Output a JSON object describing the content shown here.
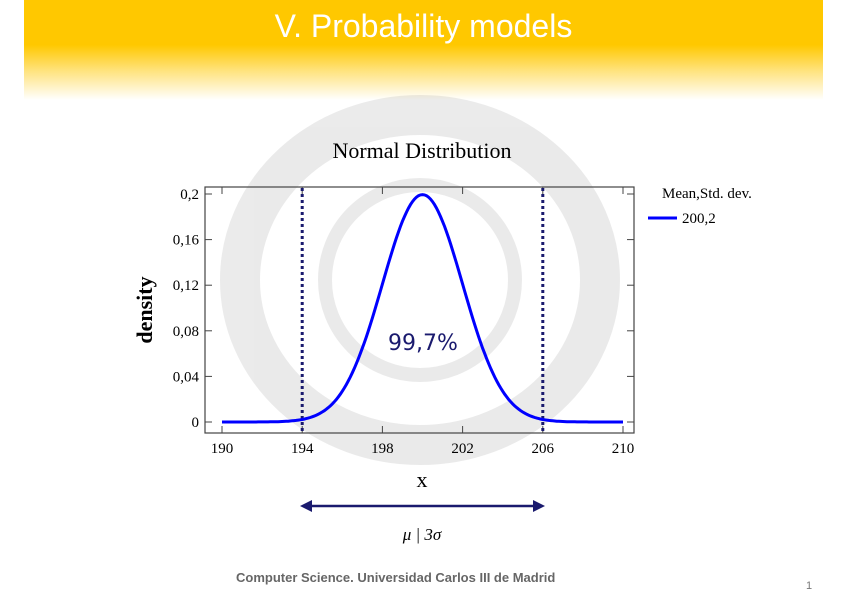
{
  "slide": {
    "title": "V. Probability models",
    "footer": "Computer Science. Universidad Carlos III de Madrid",
    "page_number": "1",
    "range_label": "μ | 3σ"
  },
  "chart_data": {
    "type": "line",
    "title": "Normal Distribution",
    "xlabel": "x",
    "ylabel": "density",
    "xlim": [
      190,
      210
    ],
    "ylim": [
      0,
      0.2
    ],
    "x_ticks": [
      "190",
      "194",
      "198",
      "202",
      "206",
      "210"
    ],
    "y_ticks": [
      "0",
      "0,04",
      "0,08",
      "0,12",
      "0,16",
      "0,2"
    ],
    "grid": false,
    "legend": {
      "title": "Mean,Std. dev.",
      "placement": "right",
      "entries": [
        "200,2"
      ]
    },
    "series": [
      {
        "name": "200,2",
        "color": "#0000ff",
        "mean": 200,
        "sd": 2,
        "x": [
          190,
          191,
          192,
          193,
          194,
          195,
          196,
          197,
          198,
          199,
          200,
          201,
          202,
          203,
          204,
          205,
          206,
          207,
          208,
          209,
          210
        ],
        "y": [
          0,
          0,
          0.0001,
          0.0004,
          0.0022,
          0.0088,
          0.027,
          0.0648,
          0.121,
          0.176,
          0.1995,
          0.176,
          0.121,
          0.0648,
          0.027,
          0.0088,
          0.0022,
          0.0004,
          0.0001,
          0,
          0
        ]
      }
    ],
    "reference_lines": [
      194,
      206
    ],
    "reference_color": "#1a1a6e",
    "annotation": "99,7%"
  }
}
